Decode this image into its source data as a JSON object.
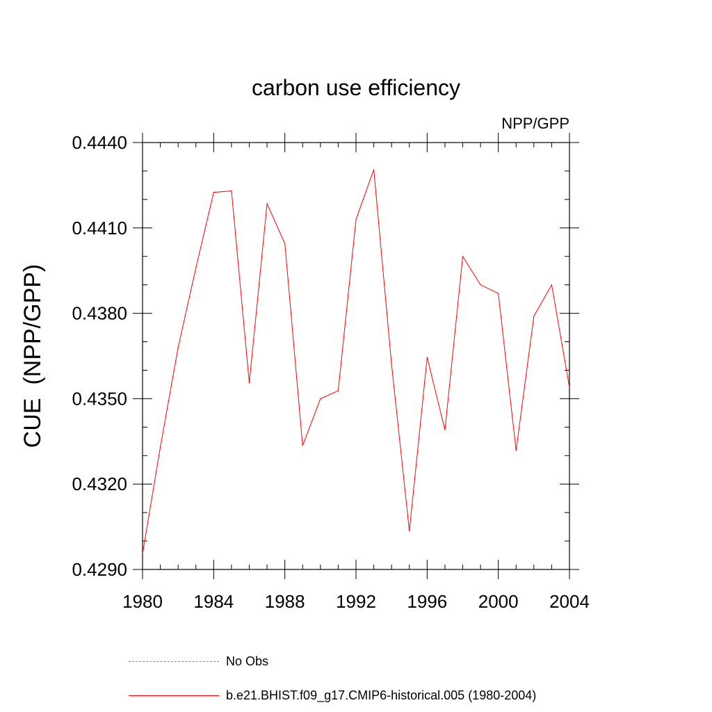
{
  "chart_data": {
    "type": "line",
    "title": "carbon use efficiency",
    "subtitle": "NPP/GPP",
    "xlabel": "",
    "ylabel": "CUE  (NPP/GPP)",
    "xlim": [
      1980,
      2004
    ],
    "ylim": [
      0.429,
      0.444
    ],
    "xticks": [
      "1980",
      "1984",
      "1988",
      "1992",
      "1996",
      "2000",
      "2004"
    ],
    "yticks": [
      "0.4290",
      "0.4320",
      "0.4350",
      "0.4380",
      "0.4410",
      "0.4440"
    ],
    "grid": false,
    "legend_position": "bottom",
    "series": [
      {
        "name": "No Obs",
        "color": "#7777cc",
        "style": "dashed",
        "x": [],
        "values": []
      },
      {
        "name": "b.e21.BHIST.f09_g17.CMIP6-historical.005 (1980-2004)",
        "color": "#ff0000",
        "style": "solid",
        "x": [
          1980,
          1981,
          1982,
          1983,
          1984,
          1985,
          1986,
          1987,
          1988,
          1989,
          1990,
          1991,
          1992,
          1993,
          1994,
          1995,
          1996,
          1997,
          1998,
          1999,
          2000,
          2001,
          2002,
          2003,
          2004
        ],
        "values": [
          0.42955,
          0.4333,
          0.4368,
          0.4396,
          0.44225,
          0.4423,
          0.43555,
          0.44185,
          0.44045,
          0.43335,
          0.435,
          0.43528,
          0.4413,
          0.44305,
          0.4362,
          0.43035,
          0.43645,
          0.4339,
          0.44,
          0.439,
          0.4387,
          0.43318,
          0.4379,
          0.439,
          0.4354
        ]
      }
    ]
  }
}
